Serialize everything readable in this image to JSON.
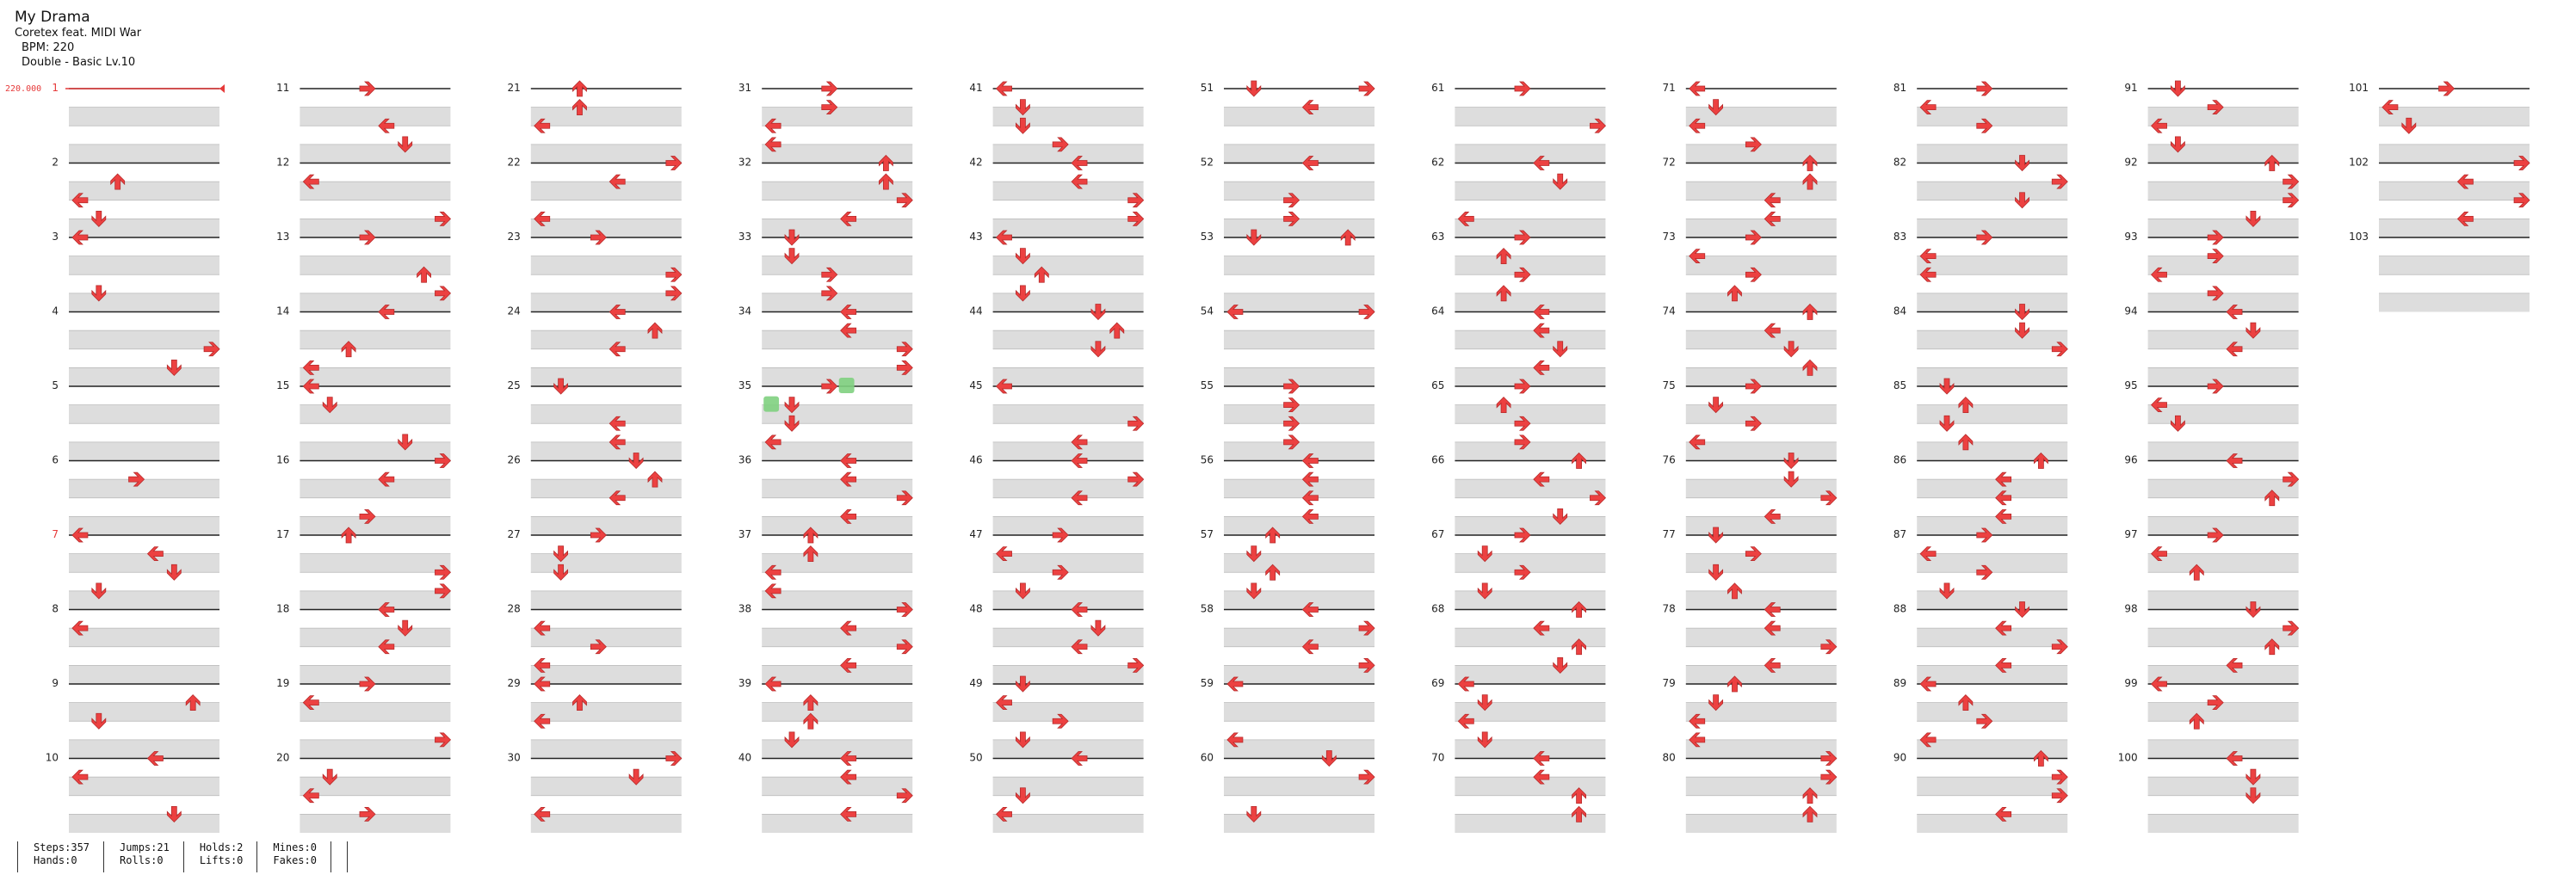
{
  "song": {
    "title": "My Drama",
    "artist": "Coretex feat. MIDI War",
    "bpm_text": "BPM: 220",
    "difficulty_text": "Double - Basic  Lv.10"
  },
  "bpm_marker": "220.000",
  "stats": [
    [
      "Steps:357",
      "Hands:0"
    ],
    [
      "Jumps:21",
      "Rolls:0"
    ],
    [
      "Holds:2",
      "Lifts:0"
    ],
    [
      "Mines:0",
      "Fakes:0"
    ]
  ],
  "colors": {
    "arrow": "#ec4141",
    "hold": "#7fd07f",
    "band": "#dddddd",
    "line": "#222222",
    "accent": "#e63a3a"
  },
  "measures": {
    "total_count": 103,
    "labels": [
      "1",
      "2",
      "3",
      "4",
      "5",
      "6",
      "7",
      "8",
      "9",
      "10",
      "11",
      "12",
      "13",
      "14",
      "15",
      "16",
      "17",
      "18",
      "19",
      "20",
      "21",
      "22",
      "23",
      "24",
      "25",
      "26",
      "27",
      "28",
      "29",
      "30",
      "31",
      "32",
      "33",
      "34",
      "35",
      "36",
      "37",
      "38",
      "39",
      "40",
      "41",
      "42",
      "43",
      "44",
      "45",
      "46",
      "47",
      "48",
      "49",
      "50",
      "51",
      "52",
      "53",
      "54",
      "55",
      "56",
      "57",
      "58",
      "59",
      "60",
      "61",
      "62",
      "63",
      "64",
      "65",
      "66",
      "67",
      "68",
      "69",
      "70",
      "71",
      "72",
      "73",
      "74",
      "75",
      "76",
      "77",
      "78",
      "79",
      "80",
      "81",
      "82",
      "83",
      "84",
      "85",
      "86",
      "87",
      "88",
      "89",
      "90",
      "91",
      "92",
      "93",
      "94",
      "95",
      "96",
      "97",
      "98",
      "99",
      "100",
      "101",
      "102",
      "103"
    ]
  },
  "notes": {
    "2": [
      [
        1,
        "up"
      ],
      [
        2,
        "left"
      ],
      [
        3,
        "down"
      ]
    ],
    "3": [
      [
        0,
        "left"
      ],
      [
        3,
        "down"
      ]
    ],
    "4": [
      [
        2,
        "right"
      ],
      [
        3,
        "down"
      ]
    ],
    "6": [
      [
        1,
        "right"
      ],
      [
        5,
        "left"
      ],
      [
        6,
        "down"
      ]
    ],
    "7": [
      [
        0,
        "left"
      ],
      [
        3,
        "down"
      ]
    ],
    "8": [
      [
        1,
        "left"
      ],
      [
        5,
        "up"
      ]
    ],
    "9": [
      [
        2,
        "down"
      ],
      [
        5,
        "left"
      ]
    ],
    "10": [
      [
        0,
        "left"
      ],
      [
        3,
        "down"
      ],
      [
        5,
        "left"
      ]
    ],
    "11": [
      [
        0,
        "right"
      ],
      [
        2,
        "left"
      ],
      [
        3,
        "down"
      ]
    ],
    "12": [
      [
        1,
        "left"
      ],
      [
        3,
        "right"
      ]
    ],
    "13": [
      [
        0,
        "right"
      ],
      [
        2,
        "up"
      ],
      [
        3,
        "right"
      ]
    ],
    "14": [
      [
        0,
        "left"
      ],
      [
        2,
        "up"
      ],
      [
        3,
        "left"
      ]
    ],
    "15": [
      [
        0,
        "left"
      ],
      [
        1,
        "down"
      ],
      [
        3,
        "down"
      ]
    ],
    "16": [
      [
        0,
        "right"
      ],
      [
        1,
        "left"
      ],
      [
        3,
        "right"
      ]
    ],
    "17": [
      [
        0,
        "up"
      ],
      [
        2,
        "right"
      ],
      [
        3,
        "right"
      ]
    ],
    "18": [
      [
        0,
        "left"
      ],
      [
        1,
        "down"
      ],
      [
        2,
        "left"
      ]
    ],
    "19": [
      [
        0,
        "right"
      ],
      [
        1,
        "left"
      ],
      [
        3,
        "right"
      ]
    ],
    "20": [
      [
        1,
        "down"
      ],
      [
        2,
        "left"
      ],
      [
        3,
        "right"
      ]
    ],
    "21": [
      [
        0,
        "up"
      ],
      [
        1,
        "up"
      ],
      [
        2,
        "left"
      ]
    ],
    "22": [
      [
        0,
        "right"
      ],
      [
        1,
        "left"
      ],
      [
        3,
        "left"
      ]
    ],
    "23": [
      [
        0,
        "right"
      ],
      [
        2,
        "right"
      ],
      [
        3,
        "right"
      ]
    ],
    "24": [
      [
        0,
        "left"
      ],
      [
        1,
        "up"
      ],
      [
        2,
        "left"
      ]
    ],
    "25": [
      [
        0,
        "down"
      ],
      [
        2,
        "left"
      ],
      [
        3,
        "left"
      ]
    ],
    "26": [
      [
        0,
        "down"
      ],
      [
        1,
        "up"
      ],
      [
        2,
        "left"
      ]
    ],
    "27": [
      [
        0,
        "right"
      ],
      [
        1,
        "down"
      ],
      [
        2,
        "down"
      ]
    ],
    "28": [
      [
        1,
        "left"
      ],
      [
        2,
        "right"
      ],
      [
        3,
        "left"
      ]
    ],
    "29": [
      [
        0,
        "left"
      ],
      [
        1,
        "up"
      ],
      [
        2,
        "left"
      ]
    ],
    "30": [
      [
        0,
        "right"
      ],
      [
        1,
        "down"
      ],
      [
        3,
        "left"
      ]
    ],
    "31": [
      [
        0,
        "right"
      ],
      [
        1,
        "right"
      ],
      [
        2,
        "left"
      ],
      [
        3,
        "left"
      ]
    ],
    "32": [
      [
        0,
        "up"
      ],
      [
        1,
        "up"
      ],
      [
        2,
        "right"
      ],
      [
        3,
        "left"
      ]
    ],
    "33": [
      [
        0,
        "down"
      ],
      [
        1,
        "down"
      ],
      [
        2,
        "right"
      ],
      [
        3,
        "right"
      ]
    ],
    "34": [
      [
        0,
        "left"
      ],
      [
        1,
        "left"
      ],
      [
        2,
        "right"
      ],
      [
        3,
        "right"
      ]
    ],
    "35": [
      [
        0,
        "right"
      ],
      [
        1,
        "down"
      ],
      [
        2,
        "down"
      ],
      [
        3,
        "left"
      ]
    ],
    "36": [
      [
        0,
        "left"
      ],
      [
        1,
        "left"
      ],
      [
        2,
        "right"
      ],
      [
        3,
        "left"
      ]
    ],
    "37": [
      [
        0,
        "up"
      ],
      [
        1,
        "up"
      ],
      [
        2,
        "left"
      ],
      [
        3,
        "left"
      ]
    ],
    "38": [
      [
        0,
        "right"
      ],
      [
        1,
        "left"
      ],
      [
        2,
        "right"
      ],
      [
        3,
        "left"
      ]
    ],
    "39": [
      [
        0,
        "left"
      ],
      [
        1,
        "up"
      ],
      [
        2,
        "up"
      ],
      [
        3,
        "down"
      ]
    ],
    "40": [
      [
        0,
        "left"
      ],
      [
        1,
        "left"
      ],
      [
        2,
        "right"
      ],
      [
        3,
        "left"
      ]
    ],
    "41": [
      [
        0,
        "left"
      ],
      [
        1,
        "down"
      ],
      [
        2,
        "down"
      ],
      [
        3,
        "right"
      ]
    ],
    "42": [
      [
        0,
        "left"
      ],
      [
        1,
        "left"
      ],
      [
        2,
        "right"
      ],
      [
        3,
        "right"
      ]
    ],
    "43": [
      [
        0,
        "left"
      ],
      [
        1,
        "down"
      ],
      [
        2,
        "up"
      ],
      [
        3,
        "down"
      ]
    ],
    "44": [
      [
        0,
        "down"
      ],
      [
        1,
        "up"
      ],
      [
        2,
        "down"
      ]
    ],
    "45": [
      [
        0,
        "left"
      ],
      [
        2,
        "right"
      ],
      [
        3,
        "left"
      ]
    ],
    "46": [
      [
        0,
        "left"
      ],
      [
        1,
        "right"
      ],
      [
        2,
        "left"
      ]
    ],
    "47": [
      [
        0,
        "right"
      ],
      [
        1,
        "left"
      ],
      [
        2,
        "right"
      ],
      [
        3,
        "down"
      ]
    ],
    "48": [
      [
        0,
        "left"
      ],
      [
        1,
        "down"
      ],
      [
        2,
        "left"
      ],
      [
        3,
        "right"
      ]
    ],
    "49": [
      [
        0,
        "down"
      ],
      [
        1,
        "left"
      ],
      [
        2,
        "right"
      ],
      [
        3,
        "down"
      ]
    ],
    "50": [
      [
        0,
        "left"
      ],
      [
        2,
        "down"
      ],
      [
        3,
        "left"
      ]
    ],
    "51": [
      [
        0,
        "down"
      ],
      [
        0,
        "right"
      ],
      [
        1,
        "left"
      ]
    ],
    "52": [
      [
        0,
        "left"
      ],
      [
        2,
        "right"
      ],
      [
        3,
        "right"
      ]
    ],
    "53": [
      [
        0,
        "down"
      ],
      [
        0,
        "up"
      ]
    ],
    "54": [
      [
        0,
        "right"
      ],
      [
        0,
        "left"
      ]
    ],
    "55": [
      [
        0,
        "right"
      ],
      [
        1,
        "right"
      ],
      [
        2,
        "right"
      ],
      [
        3,
        "right"
      ]
    ],
    "56": [
      [
        0,
        "left"
      ],
      [
        1,
        "left"
      ],
      [
        2,
        "left"
      ],
      [
        3,
        "left"
      ]
    ],
    "57": [
      [
        0,
        "up"
      ],
      [
        1,
        "down"
      ],
      [
        2,
        "up"
      ],
      [
        3,
        "down"
      ]
    ],
    "58": [
      [
        0,
        "left"
      ],
      [
        1,
        "right"
      ],
      [
        2,
        "left"
      ],
      [
        3,
        "right"
      ]
    ],
    "59": [
      [
        0,
        "left"
      ],
      [
        3,
        "left"
      ]
    ],
    "60": [
      [
        0,
        "down"
      ],
      [
        1,
        "right"
      ],
      [
        3,
        "down"
      ]
    ],
    "61": [
      [
        0,
        "right"
      ],
      [
        2,
        "right"
      ]
    ],
    "62": [
      [
        0,
        "left"
      ],
      [
        1,
        "down"
      ],
      [
        3,
        "left"
      ]
    ],
    "63": [
      [
        0,
        "right"
      ],
      [
        1,
        "up"
      ],
      [
        2,
        "right"
      ],
      [
        3,
        "up"
      ]
    ],
    "64": [
      [
        0,
        "left"
      ],
      [
        1,
        "left"
      ],
      [
        2,
        "down"
      ],
      [
        3,
        "left"
      ]
    ],
    "65": [
      [
        0,
        "right"
      ],
      [
        1,
        "up"
      ],
      [
        2,
        "right"
      ],
      [
        3,
        "right"
      ]
    ],
    "66": [
      [
        0,
        "up"
      ],
      [
        1,
        "left"
      ],
      [
        2,
        "right"
      ],
      [
        3,
        "down"
      ]
    ],
    "67": [
      [
        0,
        "right"
      ],
      [
        1,
        "down"
      ],
      [
        2,
        "right"
      ],
      [
        3,
        "down"
      ]
    ],
    "68": [
      [
        0,
        "up"
      ],
      [
        1,
        "left"
      ],
      [
        2,
        "up"
      ],
      [
        3,
        "down"
      ]
    ],
    "69": [
      [
        0,
        "left"
      ],
      [
        1,
        "down"
      ],
      [
        2,
        "left"
      ],
      [
        3,
        "down"
      ]
    ],
    "70": [
      [
        0,
        "left"
      ],
      [
        1,
        "left"
      ],
      [
        2,
        "up"
      ],
      [
        3,
        "up"
      ]
    ],
    "71": [
      [
        0,
        "left"
      ],
      [
        1,
        "down"
      ],
      [
        2,
        "left"
      ],
      [
        3,
        "right"
      ]
    ],
    "72": [
      [
        0,
        "up"
      ],
      [
        1,
        "up"
      ],
      [
        2,
        "left"
      ],
      [
        3,
        "left"
      ]
    ],
    "73": [
      [
        0,
        "right"
      ],
      [
        1,
        "left"
      ],
      [
        2,
        "right"
      ],
      [
        3,
        "up"
      ]
    ],
    "74": [
      [
        0,
        "up"
      ],
      [
        1,
        "left"
      ],
      [
        2,
        "down"
      ],
      [
        3,
        "up"
      ]
    ],
    "75": [
      [
        0,
        "right"
      ],
      [
        1,
        "down"
      ],
      [
        2,
        "right"
      ],
      [
        3,
        "left"
      ]
    ],
    "76": [
      [
        0,
        "down"
      ],
      [
        1,
        "down"
      ],
      [
        2,
        "right"
      ],
      [
        3,
        "left"
      ]
    ],
    "77": [
      [
        0,
        "down"
      ],
      [
        1,
        "right"
      ],
      [
        2,
        "down"
      ],
      [
        3,
        "up"
      ]
    ],
    "78": [
      [
        0,
        "left"
      ],
      [
        1,
        "left"
      ],
      [
        2,
        "right"
      ],
      [
        3,
        "left"
      ]
    ],
    "79": [
      [
        0,
        "up"
      ],
      [
        1,
        "down"
      ],
      [
        2,
        "left"
      ],
      [
        3,
        "left"
      ]
    ],
    "80": [
      [
        0,
        "right"
      ],
      [
        1,
        "right"
      ],
      [
        2,
        "up"
      ],
      [
        3,
        "up"
      ]
    ],
    "81": [
      [
        0,
        "right"
      ],
      [
        1,
        "left"
      ],
      [
        2,
        "right"
      ]
    ],
    "82": [
      [
        0,
        "down"
      ],
      [
        1,
        "right"
      ],
      [
        2,
        "down"
      ]
    ],
    "83": [
      [
        0,
        "right"
      ],
      [
        1,
        "left"
      ],
      [
        2,
        "left"
      ]
    ],
    "84": [
      [
        0,
        "down"
      ],
      [
        1,
        "down"
      ],
      [
        2,
        "right"
      ]
    ],
    "85": [
      [
        0,
        "down"
      ],
      [
        1,
        "up"
      ],
      [
        2,
        "down"
      ],
      [
        3,
        "up"
      ]
    ],
    "86": [
      [
        0,
        "up"
      ],
      [
        1,
        "left"
      ],
      [
        2,
        "left"
      ],
      [
        3,
        "left"
      ]
    ],
    "87": [
      [
        0,
        "right"
      ],
      [
        1,
        "left"
      ],
      [
        2,
        "right"
      ],
      [
        3,
        "down"
      ]
    ],
    "88": [
      [
        0,
        "down"
      ],
      [
        1,
        "left"
      ],
      [
        2,
        "right"
      ],
      [
        3,
        "left"
      ]
    ],
    "89": [
      [
        0,
        "left"
      ],
      [
        1,
        "up"
      ],
      [
        2,
        "right"
      ],
      [
        3,
        "left"
      ]
    ],
    "90": [
      [
        0,
        "up"
      ],
      [
        1,
        "right"
      ],
      [
        2,
        "right"
      ],
      [
        3,
        "left"
      ]
    ],
    "91": [
      [
        0,
        "down"
      ],
      [
        1,
        "right"
      ],
      [
        2,
        "left"
      ],
      [
        3,
        "down"
      ]
    ],
    "92": [
      [
        0,
        "up"
      ],
      [
        1,
        "right"
      ],
      [
        2,
        "right"
      ],
      [
        3,
        "down"
      ]
    ],
    "93": [
      [
        0,
        "right"
      ],
      [
        1,
        "right"
      ],
      [
        2,
        "left"
      ],
      [
        3,
        "right"
      ]
    ],
    "94": [
      [
        0,
        "left"
      ],
      [
        1,
        "down"
      ],
      [
        2,
        "left"
      ]
    ],
    "95": [
      [
        0,
        "right"
      ],
      [
        1,
        "left"
      ],
      [
        2,
        "down"
      ]
    ],
    "96": [
      [
        0,
        "left"
      ],
      [
        1,
        "right"
      ],
      [
        2,
        "up"
      ]
    ],
    "97": [
      [
        0,
        "right"
      ],
      [
        1,
        "left"
      ],
      [
        2,
        "up"
      ]
    ],
    "98": [
      [
        0,
        "down"
      ],
      [
        1,
        "right"
      ],
      [
        2,
        "up"
      ],
      [
        3,
        "left"
      ]
    ],
    "99": [
      [
        0,
        "left"
      ],
      [
        1,
        "right"
      ],
      [
        2,
        "up"
      ]
    ],
    "100": [
      [
        0,
        "left"
      ],
      [
        1,
        "down"
      ],
      [
        2,
        "down"
      ]
    ],
    "101": [
      [
        0,
        "right"
      ],
      [
        1,
        "left"
      ],
      [
        2,
        "down"
      ]
    ],
    "102": [
      [
        0,
        "right"
      ],
      [
        1,
        "left"
      ],
      [
        2,
        "right"
      ],
      [
        3,
        "left"
      ]
    ]
  },
  "measure1_notes": [],
  "holds": [
    [
      "35",
      1,
      2
    ]
  ]
}
